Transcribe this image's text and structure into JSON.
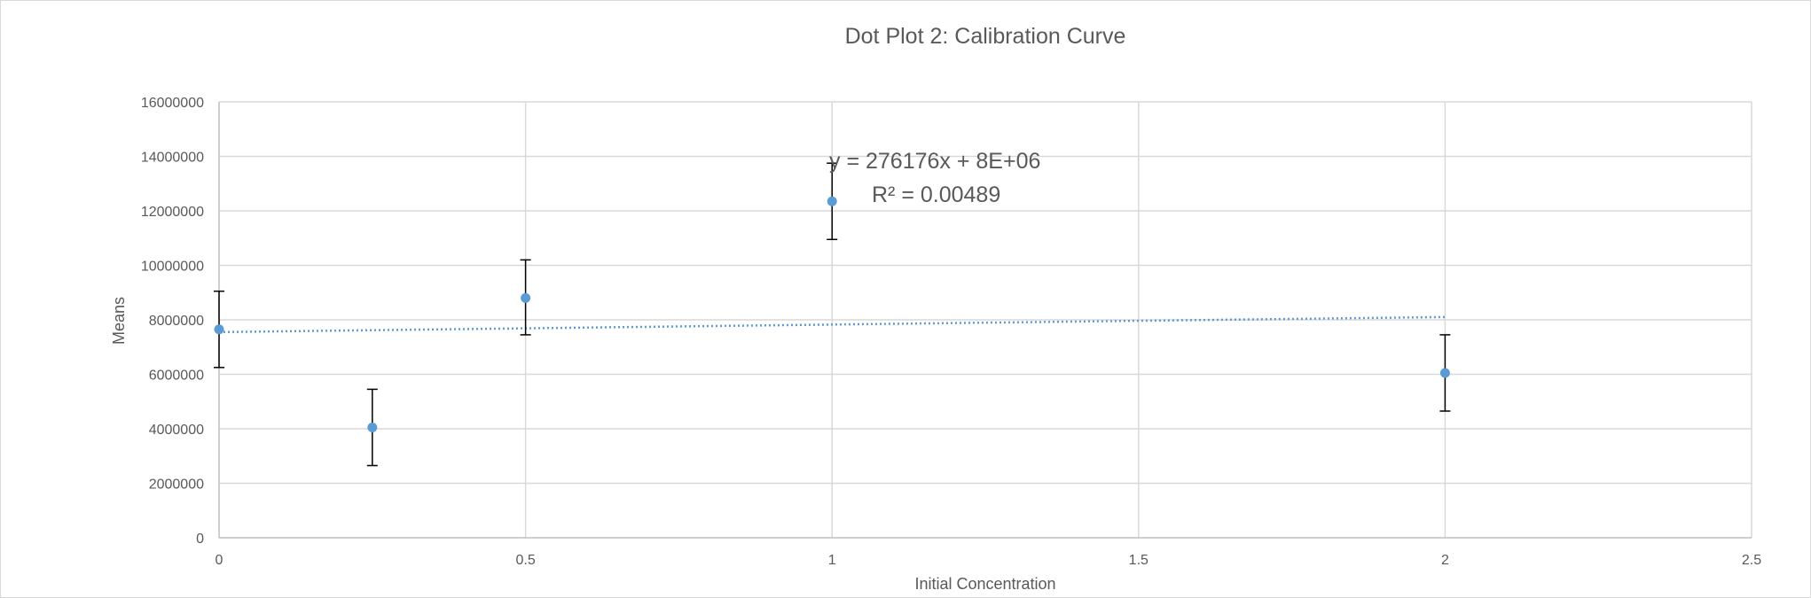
{
  "chart_data": {
    "type": "scatter",
    "title": "Dot Plot 2: Calibration Curve",
    "xlabel": "Initial Concentration",
    "ylabel": "Means",
    "xlim": [
      0,
      2.5
    ],
    "ylim": [
      0,
      16000000
    ],
    "x_ticks": [
      0,
      0.5,
      1,
      1.5,
      2,
      2.5
    ],
    "x_tick_labels": [
      "0",
      "0.5",
      "1",
      "1.5",
      "2",
      "2.5"
    ],
    "y_ticks": [
      0,
      2000000,
      4000000,
      6000000,
      8000000,
      10000000,
      12000000,
      14000000,
      16000000
    ],
    "y_tick_labels": [
      "0",
      "2000000",
      "4000000",
      "6000000",
      "8000000",
      "10000000",
      "12000000",
      "14000000",
      "16000000"
    ],
    "grid": true,
    "legend": "none",
    "marker_color": "#5b9bd5",
    "errorbar_color": "#000000",
    "points": [
      {
        "x": 0,
        "y": 7650000,
        "err_low": 6250000,
        "err_high": 9050000
      },
      {
        "x": 0.25,
        "y": 4050000,
        "err_low": 2650000,
        "err_high": 5450000
      },
      {
        "x": 0.5,
        "y": 8800000,
        "err_low": 7450000,
        "err_high": 10200000
      },
      {
        "x": 1,
        "y": 12350000,
        "err_low": 10950000,
        "err_high": 13750000
      },
      {
        "x": 2,
        "y": 6050000,
        "err_low": 4650000,
        "err_high": 7450000
      }
    ],
    "trendline": {
      "type": "linear",
      "slope": 276176,
      "intercept": 7550000,
      "x_range": [
        0,
        2
      ],
      "style": "dotted",
      "color": "#5b9bd5",
      "equation_label": "y = 276176x + 8E+06",
      "r2_label": "R² = 0.00489"
    }
  }
}
